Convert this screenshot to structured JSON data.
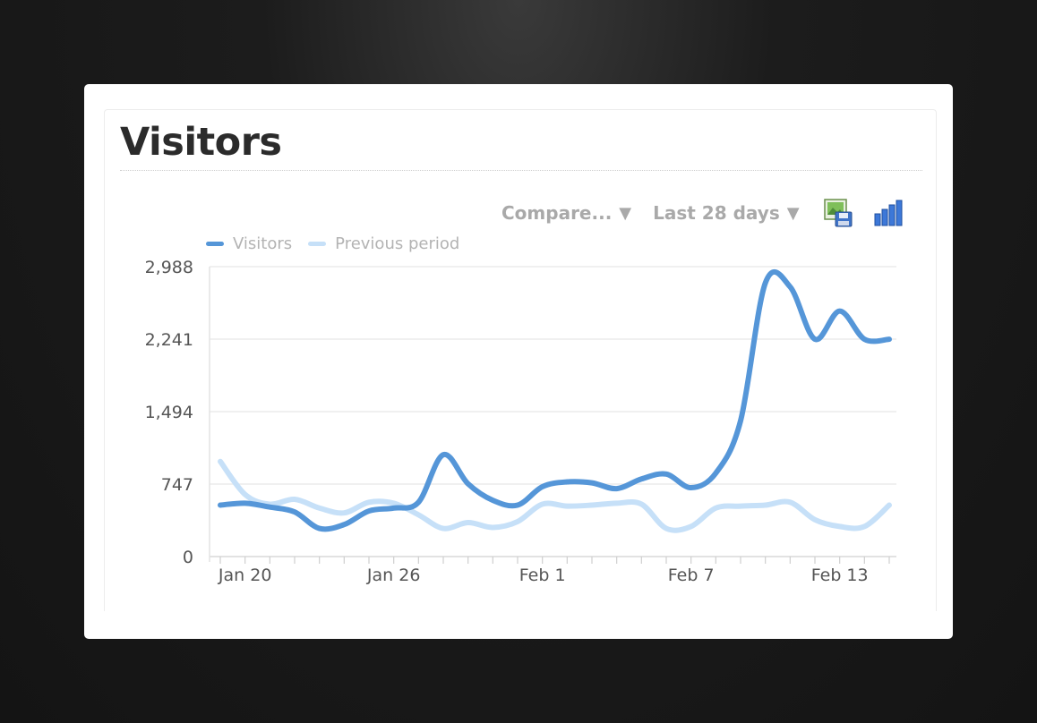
{
  "panel": {
    "title": "Visitors"
  },
  "toolbar": {
    "compare_label": "Compare...",
    "range_label": "Last 28 days",
    "caret": "▼",
    "export_icon": "save-image-icon",
    "chart_type_icon": "bar-chart-icon"
  },
  "colors": {
    "visitors": "#5596d8",
    "previous": "#c6e0f8"
  },
  "chart_data": {
    "type": "line",
    "x": [
      "Jan 19",
      "Jan 20",
      "Jan 21",
      "Jan 22",
      "Jan 23",
      "Jan 24",
      "Jan 25",
      "Jan 26",
      "Jan 27",
      "Jan 28",
      "Jan 29",
      "Jan 30",
      "Jan 31",
      "Feb 1",
      "Feb 2",
      "Feb 3",
      "Feb 4",
      "Feb 5",
      "Feb 6",
      "Feb 7",
      "Feb 8",
      "Feb 9",
      "Feb 10",
      "Feb 11",
      "Feb 12",
      "Feb 13",
      "Feb 14",
      "Feb 15"
    ],
    "x_tick_labels": [
      "Jan 20",
      "Jan 26",
      "Feb 1",
      "Feb 7",
      "Feb 13"
    ],
    "y_tick_labels": [
      "0",
      "747",
      "1,494",
      "2,241",
      "2,988"
    ],
    "ylim": [
      0,
      2988
    ],
    "grid": true,
    "legend_position": "top-left",
    "series": [
      {
        "name": "Visitors",
        "values": [
          530,
          550,
          510,
          460,
          290,
          330,
          470,
          500,
          560,
          1050,
          750,
          580,
          530,
          720,
          770,
          760,
          700,
          800,
          850,
          710,
          860,
          1400,
          2820,
          2780,
          2240,
          2530,
          2240,
          2240
        ]
      },
      {
        "name": "Previous period",
        "values": [
          980,
          640,
          540,
          590,
          500,
          450,
          560,
          550,
          430,
          290,
          350,
          300,
          360,
          540,
          520,
          530,
          550,
          540,
          290,
          310,
          500,
          520,
          530,
          560,
          380,
          310,
          310,
          530
        ]
      }
    ]
  }
}
